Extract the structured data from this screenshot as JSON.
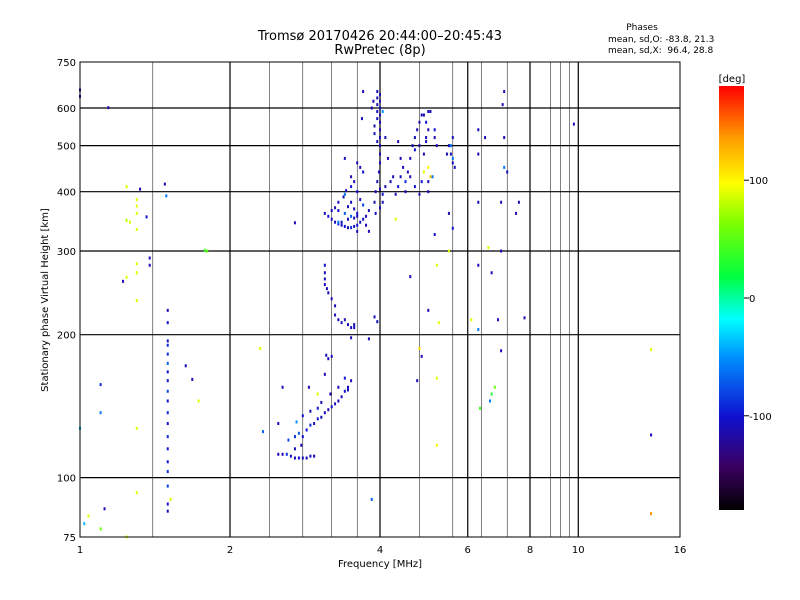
{
  "chart_data": {
    "type": "scatter",
    "title": "Tromsø 20170426 20:44:00–20:45:43",
    "subtitle": "RwPretec (8p)",
    "xlabel": "Frequency [MHz]",
    "ylabel": "Stationary phase Virtual Height [km]",
    "x_scale": "log",
    "y_scale": "log",
    "xlim": [
      1,
      16
    ],
    "ylim": [
      75,
      750
    ],
    "x_ticks": [
      {
        "value": 1,
        "label": "1",
        "grid": false
      },
      {
        "value": 2,
        "label": "2",
        "grid": true
      },
      {
        "value": 4,
        "label": "4",
        "grid": true
      },
      {
        "value": 6,
        "label": "6",
        "grid": true
      },
      {
        "value": 8,
        "label": "8",
        "grid": true
      },
      {
        "value": 10,
        "label": "10",
        "grid": true
      },
      {
        "value": 16,
        "label": "16",
        "grid": false
      }
    ],
    "x_minor_grid": [
      1.4,
      2.4,
      2.8,
      3.2,
      3.6,
      4.8,
      5.6,
      6.4,
      7.2,
      8.8,
      9.2,
      9.6
    ],
    "y_ticks": [
      {
        "value": 75,
        "label": "75",
        "grid": false
      },
      {
        "value": 100,
        "label": "100",
        "grid": true
      },
      {
        "value": 200,
        "label": "200",
        "grid": true
      },
      {
        "value": 300,
        "label": "300",
        "grid": true
      },
      {
        "value": 400,
        "label": "400",
        "grid": true
      },
      {
        "value": 500,
        "label": "500",
        "grid": true
      },
      {
        "value": 600,
        "label": "600",
        "grid": true
      },
      {
        "value": 750,
        "label": "750",
        "grid": false
      }
    ],
    "grid": true,
    "phases": {
      "title": "Phases",
      "line_o": "mean, sd,O: -83.8, 21.3",
      "line_x": "mean, sd,X:  96.4, 28.8"
    },
    "colorbar": {
      "label": "[deg]",
      "range": [
        -180,
        180
      ],
      "ticks": [
        {
          "value": 100,
          "label": "100"
        },
        {
          "value": 0,
          "label": "0"
        },
        {
          "value": -100,
          "label": "-100"
        }
      ]
    },
    "points": [
      [
        1.0,
        635,
        -100
      ],
      [
        1.0,
        655,
        -110
      ],
      [
        1.14,
        601,
        -110
      ],
      [
        1.0,
        127,
        -40
      ],
      [
        1.02,
        80,
        -40
      ],
      [
        1.04,
        83,
        90
      ],
      [
        1.1,
        157,
        -90
      ],
      [
        1.1,
        137,
        -60
      ],
      [
        1.12,
        86,
        -110
      ],
      [
        1.1,
        78,
        60
      ],
      [
        1.24,
        410,
        90
      ],
      [
        1.24,
        348,
        80
      ],
      [
        1.22,
        259,
        -110
      ],
      [
        1.24,
        264,
        90
      ],
      [
        1.26,
        345,
        90
      ],
      [
        1.3,
        385,
        90
      ],
      [
        1.3,
        373,
        90
      ],
      [
        1.3,
        360,
        90
      ],
      [
        1.3,
        333,
        90
      ],
      [
        1.3,
        282,
        90
      ],
      [
        1.3,
        270,
        90
      ],
      [
        1.3,
        236,
        90
      ],
      [
        1.3,
        127,
        90
      ],
      [
        1.3,
        93,
        90
      ],
      [
        1.32,
        405,
        -110
      ],
      [
        1.36,
        354,
        -100
      ],
      [
        1.38,
        290,
        -110
      ],
      [
        1.38,
        280,
        -110
      ],
      [
        1.24,
        75,
        90
      ],
      [
        1.48,
        415,
        -110
      ],
      [
        1.49,
        392,
        -60
      ],
      [
        1.5,
        225,
        -110
      ],
      [
        1.5,
        212,
        -100
      ],
      [
        1.5,
        194,
        -100
      ],
      [
        1.5,
        190,
        -90
      ],
      [
        1.5,
        182,
        -90
      ],
      [
        1.5,
        174,
        -70
      ],
      [
        1.5,
        167,
        -100
      ],
      [
        1.5,
        160,
        -100
      ],
      [
        1.5,
        152,
        -80
      ],
      [
        1.5,
        145,
        -100
      ],
      [
        1.5,
        137,
        -90
      ],
      [
        1.5,
        130,
        -100
      ],
      [
        1.5,
        122,
        -90
      ],
      [
        1.5,
        115,
        -100
      ],
      [
        1.5,
        108,
        -100
      ],
      [
        1.5,
        103,
        -90
      ],
      [
        1.5,
        96,
        -80
      ],
      [
        1.5,
        88,
        -100
      ],
      [
        1.5,
        85,
        -110
      ],
      [
        1.52,
        90,
        90
      ],
      [
        1.63,
        172,
        -110
      ],
      [
        1.68,
        161,
        -110
      ],
      [
        1.73,
        145,
        90
      ],
      [
        1.78,
        301,
        40
      ],
      [
        1.8,
        300,
        50
      ],
      [
        2.3,
        187,
        90
      ],
      [
        2.33,
        125,
        -70
      ],
      [
        2.5,
        130,
        -110
      ],
      [
        2.55,
        155,
        -110
      ],
      [
        2.7,
        344,
        -110
      ],
      [
        2.88,
        155,
        -110
      ],
      [
        2.5,
        112,
        -110
      ],
      [
        2.55,
        112,
        -110
      ],
      [
        2.6,
        112,
        -90
      ],
      [
        2.65,
        111,
        -110
      ],
      [
        2.7,
        110,
        -110
      ],
      [
        2.75,
        110,
        -100
      ],
      [
        2.8,
        110,
        -110
      ],
      [
        2.85,
        110,
        -110
      ],
      [
        2.9,
        111,
        -100
      ],
      [
        2.95,
        111,
        -110
      ],
      [
        2.7,
        115,
        -110
      ],
      [
        2.78,
        117,
        -110
      ],
      [
        2.62,
        120,
        -80
      ],
      [
        2.7,
        122,
        -90
      ],
      [
        2.75,
        124,
        -70
      ],
      [
        2.8,
        122,
        -100
      ],
      [
        2.85,
        126,
        -100
      ],
      [
        2.9,
        129,
        -90
      ],
      [
        2.95,
        130,
        -110
      ],
      [
        3.0,
        133,
        -100
      ],
      [
        3.05,
        134,
        -110
      ],
      [
        3.1,
        137,
        -110
      ],
      [
        3.15,
        139,
        -110
      ],
      [
        3.2,
        141,
        -100
      ],
      [
        3.25,
        143,
        -110
      ],
      [
        3.3,
        145,
        -110
      ],
      [
        3.35,
        148,
        -110
      ],
      [
        3.4,
        152,
        -100
      ],
      [
        3.45,
        153,
        -110
      ],
      [
        3.5,
        160,
        -110
      ],
      [
        2.72,
        131,
        -50
      ],
      [
        2.8,
        135,
        -100
      ],
      [
        2.9,
        138,
        -110
      ],
      [
        3.0,
        140,
        -100
      ],
      [
        3.05,
        144,
        -110
      ],
      [
        3.0,
        150,
        90
      ],
      [
        3.1,
        165,
        -110
      ],
      [
        3.15,
        178,
        -110
      ],
      [
        3.2,
        180,
        -110
      ],
      [
        3.12,
        181,
        -110
      ],
      [
        3.18,
        150,
        -110
      ],
      [
        3.3,
        155,
        -110
      ],
      [
        3.4,
        162,
        -100
      ],
      [
        3.45,
        155,
        -110
      ],
      [
        3.1,
        280,
        -100
      ],
      [
        3.1,
        270,
        -110
      ],
      [
        3.1,
        262,
        -110
      ],
      [
        3.1,
        255,
        -110
      ],
      [
        3.13,
        250,
        -110
      ],
      [
        3.15,
        245,
        -110
      ],
      [
        3.2,
        238,
        -110
      ],
      [
        3.25,
        230,
        -110
      ],
      [
        3.25,
        220,
        -110
      ],
      [
        3.3,
        215,
        -110
      ],
      [
        3.35,
        212,
        -110
      ],
      [
        3.4,
        215,
        -110
      ],
      [
        3.45,
        210,
        -110
      ],
      [
        3.5,
        207,
        -110
      ],
      [
        3.55,
        207,
        -110
      ],
      [
        3.55,
        210,
        -110
      ],
      [
        3.5,
        197,
        -110
      ],
      [
        3.8,
        196,
        -110
      ],
      [
        3.9,
        218,
        -110
      ],
      [
        3.95,
        213,
        -110
      ],
      [
        3.85,
        90,
        -70
      ],
      [
        3.1,
        360,
        -110
      ],
      [
        3.15,
        355,
        -100
      ],
      [
        3.2,
        350,
        -110
      ],
      [
        3.25,
        345,
        -110
      ],
      [
        3.3,
        342,
        -90
      ],
      [
        3.35,
        340,
        -110
      ],
      [
        3.4,
        338,
        -100
      ],
      [
        3.45,
        336,
        -110
      ],
      [
        3.5,
        336,
        -90
      ],
      [
        3.55,
        338,
        -110
      ],
      [
        3.6,
        340,
        -100
      ],
      [
        3.65,
        345,
        -110
      ],
      [
        3.7,
        350,
        -100
      ],
      [
        3.75,
        355,
        -110
      ],
      [
        3.8,
        365,
        -110
      ],
      [
        3.2,
        365,
        -110
      ],
      [
        3.25,
        370,
        -110
      ],
      [
        3.3,
        365,
        -100
      ],
      [
        3.4,
        360,
        -70
      ],
      [
        3.45,
        372,
        -110
      ],
      [
        3.5,
        380,
        -110
      ],
      [
        3.55,
        368,
        -110
      ],
      [
        3.6,
        360,
        -100
      ],
      [
        3.38,
        390,
        -110
      ],
      [
        3.42,
        402,
        -110
      ],
      [
        3.5,
        410,
        -100
      ],
      [
        3.55,
        420,
        -110
      ],
      [
        3.6,
        400,
        -100
      ],
      [
        3.65,
        385,
        -110
      ],
      [
        3.7,
        375,
        -80
      ],
      [
        3.3,
        380,
        -110
      ],
      [
        3.4,
        470,
        -110
      ],
      [
        3.6,
        460,
        -110
      ],
      [
        3.65,
        450,
        -110
      ],
      [
        3.7,
        440,
        -100
      ],
      [
        3.5,
        430,
        -110
      ],
      [
        3.35,
        345,
        -110
      ],
      [
        3.45,
        350,
        -110
      ],
      [
        3.5,
        355,
        -70
      ],
      [
        3.3,
        345,
        -60
      ],
      [
        3.55,
        352,
        -110
      ],
      [
        3.75,
        340,
        -110
      ],
      [
        3.8,
        330,
        -110
      ],
      [
        3.6,
        330,
        -110
      ],
      [
        3.4,
        395,
        -60
      ],
      [
        3.6,
        355,
        -110
      ],
      [
        3.9,
        380,
        -110
      ],
      [
        3.92,
        400,
        -110
      ],
      [
        3.95,
        420,
        -110
      ],
      [
        3.98,
        440,
        -110
      ],
      [
        4.0,
        460,
        -110
      ],
      [
        4.0,
        480,
        -110
      ],
      [
        4.0,
        500,
        -110
      ],
      [
        4.0,
        520,
        -110
      ],
      [
        4.0,
        540,
        -110
      ],
      [
        4.0,
        560,
        -110
      ],
      [
        4.0,
        580,
        -110
      ],
      [
        4.0,
        600,
        -110
      ],
      [
        4.0,
        620,
        -110
      ],
      [
        4.0,
        640,
        -110
      ],
      [
        3.95,
        650,
        -110
      ],
      [
        3.95,
        630,
        -110
      ],
      [
        3.95,
        610,
        -110
      ],
      [
        3.95,
        590,
        -110
      ],
      [
        3.95,
        570,
        -110
      ],
      [
        3.9,
        550,
        -110
      ],
      [
        3.9,
        530,
        -100
      ],
      [
        3.95,
        510,
        -110
      ],
      [
        3.85,
        600,
        -110
      ],
      [
        3.88,
        620,
        -110
      ],
      [
        3.7,
        650,
        -110
      ],
      [
        3.68,
        570,
        -110
      ],
      [
        3.92,
        360,
        -110
      ],
      [
        4.0,
        370,
        -110
      ],
      [
        4.05,
        380,
        -110
      ],
      [
        4.05,
        395,
        -100
      ],
      [
        4.0,
        405,
        -110
      ],
      [
        4.1,
        410,
        -110
      ],
      [
        4.2,
        420,
        -110
      ],
      [
        4.25,
        430,
        -110
      ],
      [
        4.15,
        470,
        -110
      ],
      [
        4.1,
        520,
        -110
      ],
      [
        4.05,
        590,
        -50
      ],
      [
        4.3,
        395,
        -110
      ],
      [
        4.35,
        410,
        -100
      ],
      [
        4.4,
        430,
        -110
      ],
      [
        4.45,
        450,
        -110
      ],
      [
        4.5,
        420,
        -90
      ],
      [
        4.5,
        400,
        -110
      ],
      [
        4.55,
        440,
        -110
      ],
      [
        4.6,
        470,
        -110
      ],
      [
        4.65,
        500,
        -110
      ],
      [
        4.7,
        520,
        -110
      ],
      [
        4.75,
        540,
        -110
      ],
      [
        4.8,
        560,
        -110
      ],
      [
        4.85,
        580,
        -110
      ],
      [
        4.9,
        580,
        -110
      ],
      [
        4.95,
        560,
        -100
      ],
      [
        5.0,
        540,
        -110
      ],
      [
        5.0,
        590,
        -110
      ],
      [
        5.05,
        590,
        -110
      ],
      [
        4.95,
        510,
        -110
      ],
      [
        4.9,
        480,
        -110
      ],
      [
        5.0,
        450,
        100
      ],
      [
        5.05,
        430,
        120
      ],
      [
        5.0,
        420,
        -110
      ],
      [
        4.9,
        440,
        90
      ],
      [
        4.85,
        420,
        -100
      ],
      [
        5.0,
        400,
        -110
      ],
      [
        4.8,
        395,
        -110
      ],
      [
        4.7,
        410,
        -100
      ],
      [
        4.6,
        430,
        -110
      ],
      [
        4.4,
        470,
        -110
      ],
      [
        4.35,
        510,
        -110
      ],
      [
        4.8,
        500,
        -110
      ],
      [
        4.7,
        490,
        -100
      ],
      [
        5.15,
        520,
        -110
      ],
      [
        5.2,
        500,
        -110
      ],
      [
        5.15,
        540,
        -100
      ],
      [
        4.95,
        520,
        -110
      ],
      [
        5.1,
        430,
        -60
      ],
      [
        5.5,
        500,
        -110
      ],
      [
        5.55,
        480,
        -110
      ],
      [
        5.6,
        460,
        -110
      ],
      [
        5.65,
        450,
        -110
      ],
      [
        5.6,
        470,
        -60
      ],
      [
        5.55,
        500,
        -60
      ],
      [
        5.6,
        520,
        -110
      ],
      [
        5.45,
        480,
        -110
      ],
      [
        4.3,
        350,
        90
      ],
      [
        4.6,
        265,
        -110
      ],
      [
        4.75,
        160,
        -110
      ],
      [
        4.85,
        180,
        -110
      ],
      [
        4.8,
        187,
        110
      ],
      [
        5.0,
        225,
        -110
      ],
      [
        5.2,
        280,
        90
      ],
      [
        5.25,
        212,
        90
      ],
      [
        5.2,
        162,
        90
      ],
      [
        5.2,
        117,
        100
      ],
      [
        5.5,
        300,
        90
      ],
      [
        5.5,
        360,
        -110
      ],
      [
        5.6,
        335,
        -100
      ],
      [
        5.15,
        325,
        -100
      ],
      [
        6.1,
        215,
        90
      ],
      [
        6.3,
        205,
        -60
      ],
      [
        6.3,
        280,
        -110
      ],
      [
        6.3,
        380,
        -110
      ],
      [
        6.3,
        480,
        -110
      ],
      [
        6.3,
        540,
        -110
      ],
      [
        6.35,
        140,
        40
      ],
      [
        6.5,
        520,
        -110
      ],
      [
        6.6,
        305,
        90
      ],
      [
        6.65,
        145,
        -60
      ],
      [
        6.7,
        270,
        -110
      ],
      [
        6.7,
        150,
        30
      ],
      [
        6.8,
        155,
        60
      ],
      [
        6.9,
        215,
        -110
      ],
      [
        7.0,
        380,
        -110
      ],
      [
        7.0,
        300,
        -110
      ],
      [
        7.0,
        185,
        -110
      ],
      [
        7.1,
        450,
        -60
      ],
      [
        7.1,
        520,
        -110
      ],
      [
        7.1,
        650,
        -110
      ],
      [
        7.05,
        610,
        -110
      ],
      [
        7.2,
        440,
        -110
      ],
      [
        7.5,
        360,
        -110
      ],
      [
        7.6,
        380,
        -110
      ],
      [
        7.8,
        217,
        -110
      ],
      [
        9.8,
        555,
        -110
      ],
      [
        14.0,
        186,
        90
      ],
      [
        14.0,
        123,
        -110
      ],
      [
        14.0,
        84,
        140
      ]
    ]
  }
}
